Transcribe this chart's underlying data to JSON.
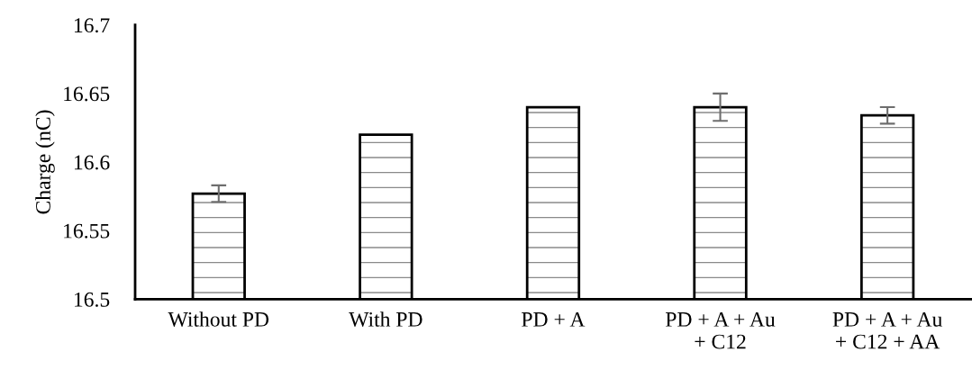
{
  "chart_data": {
    "type": "bar",
    "ylabel": "Charge (nC)",
    "categories": [
      "Without PD",
      "With PD",
      "PD + A",
      "PD + A + Au\n+ C12",
      "PD + A + Au\n+ C12 + AA"
    ],
    "values": [
      16.577,
      16.62,
      16.64,
      16.64,
      16.634
    ],
    "errors": [
      0.006,
      null,
      null,
      0.01,
      0.006
    ],
    "ylim": [
      16.5,
      16.7
    ],
    "yticks": [
      16.5,
      16.55,
      16.6,
      16.65,
      16.7
    ],
    "grid": false,
    "legend": false
  }
}
